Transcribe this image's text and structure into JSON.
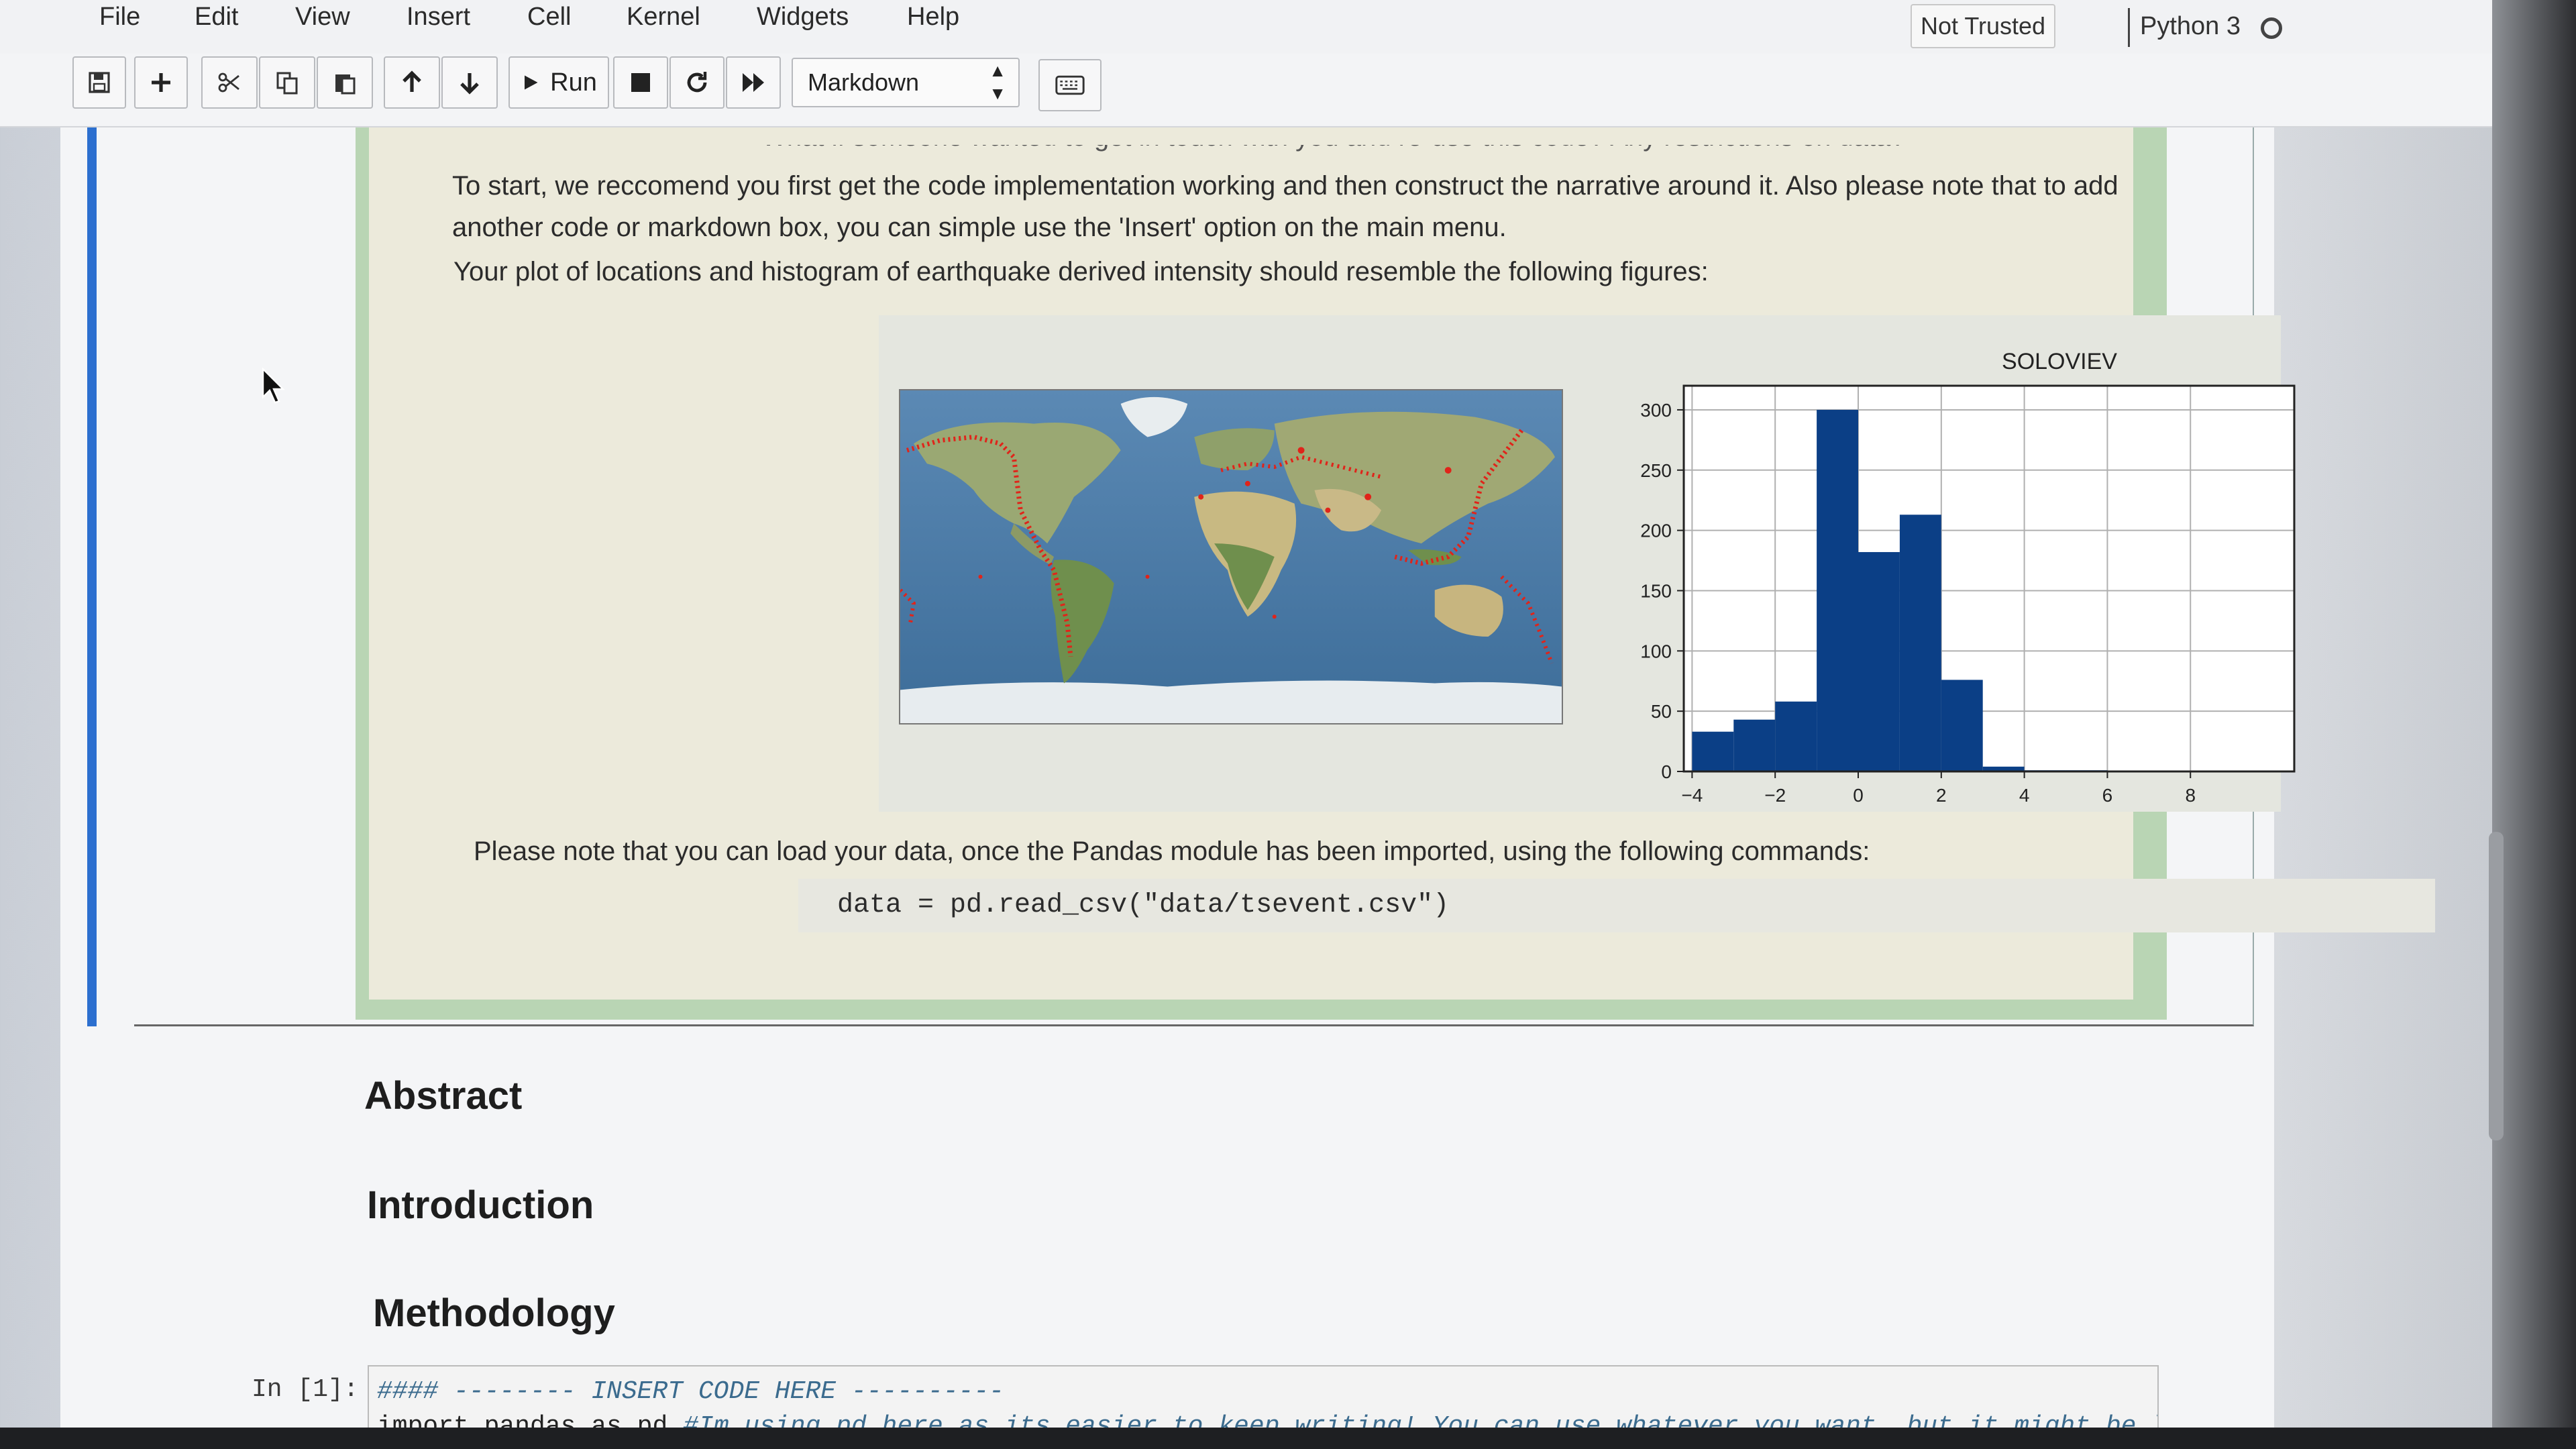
{
  "menu": {
    "items": [
      "File",
      "Edit",
      "View",
      "Insert",
      "Cell",
      "Kernel",
      "Widgets",
      "Help"
    ],
    "trust": "Not Trusted",
    "kernel": "Python 3"
  },
  "toolbar": {
    "icons": [
      "save-icon",
      "plus-icon",
      "cut-icon",
      "copy-icon",
      "paste-icon",
      "arrow-up-icon",
      "arrow-down-icon",
      "play-icon",
      "stop-icon",
      "restart-icon",
      "fast-forward-icon",
      "keyboard-icon"
    ],
    "run_label": "Run",
    "cell_type": "Markdown"
  },
  "markdown": {
    "cut_line": "• What if someone wanted to get in touch with you and re-use this code? Any restrictions on data?",
    "para1_line1": "To start, we reccomend you first get the code implementation working and then construct the narrative around it. Also please note that to add",
    "para1_line2": "another code or markdown box, you can simple use the 'Insert' option on the main menu.",
    "para2": "Your plot of locations and histogram of earthquake derived intensity should resemble the following figures:",
    "para3": "Please note that you can load your data, once the Pandas module has been imported, using the following commands:",
    "code": "data = pd.read_csv(\"data/tsevent.csv\")"
  },
  "headings": {
    "abstract": "Abstract",
    "introduction": "Introduction",
    "methodology": "Methodology"
  },
  "code_cell": {
    "prompt": "In [1]:",
    "line1": "#### -------- INSERT CODE HERE ----------",
    "line2_code": "import pandas as pd",
    "line2_comment": " #Im using pd here as its easier to keep writing! You can use whatever you want, but it might be less tedious"
  },
  "colors": {
    "cell_bar": "#2c6fcf",
    "histogram_bar": "#0b3f86",
    "map_marker": "#e0241a",
    "ocean": "#4f7fa8"
  },
  "chart_data": {
    "type": "bar",
    "title": "SOLOVIEV",
    "x": [
      -4,
      -3,
      -2,
      -1,
      0,
      1,
      2,
      3,
      4,
      5,
      6,
      7,
      8
    ],
    "values": [
      33,
      43,
      58,
      300,
      182,
      213,
      76,
      4,
      1,
      1,
      0,
      0,
      0
    ],
    "xticks": [
      -4,
      -2,
      0,
      2,
      4,
      6,
      8
    ],
    "yticks": [
      0,
      50,
      100,
      150,
      200,
      250,
      300
    ],
    "xlim": [
      -4.2,
      10.5
    ],
    "ylim": [
      0,
      320
    ],
    "grid": true
  }
}
